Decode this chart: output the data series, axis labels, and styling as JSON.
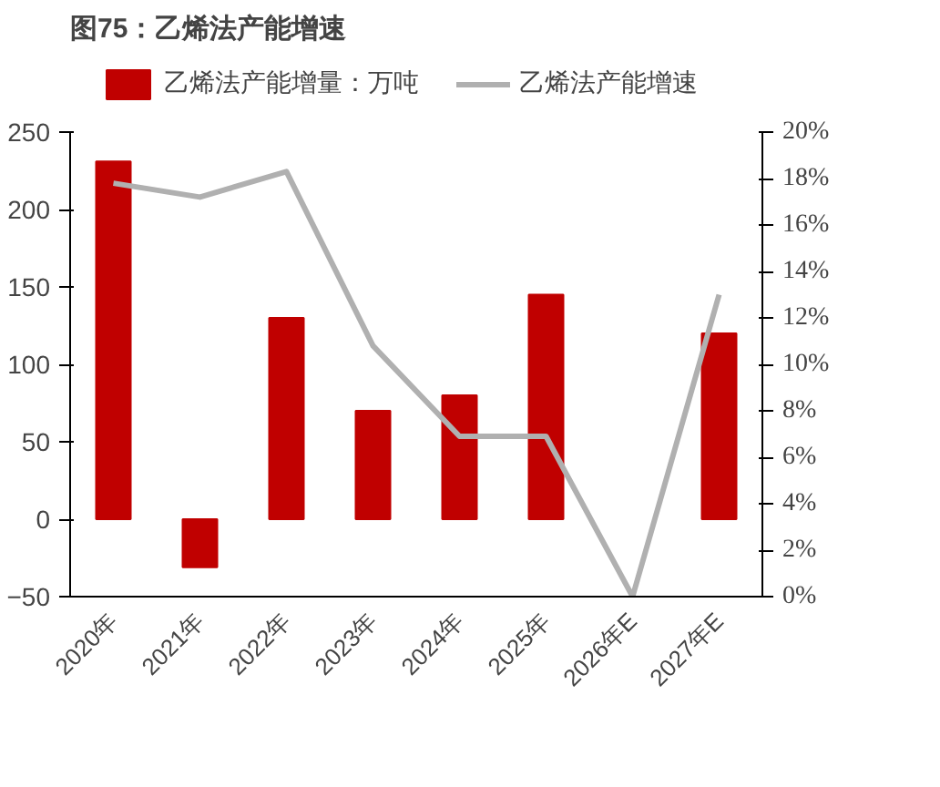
{
  "chart_data": {
    "type": "bar",
    "title": "图75：乙烯法产能增速",
    "categories": [
      "2020年",
      "2021年",
      "2022年",
      "2023年",
      "2024年",
      "2025年",
      "2026年E",
      "2027年E"
    ],
    "series": [
      {
        "name": "乙烯法产能增量：万吨",
        "color": "#c00000",
        "values": [
          231,
          -31,
          130,
          70,
          80,
          145,
          null,
          120
        ]
      },
      {
        "name": "乙烯法产能增速",
        "type": "line",
        "axis": "y2",
        "color": "#b0b0b0",
        "values": [
          17.8,
          17.2,
          18.3,
          10.8,
          6.9,
          6.9,
          0,
          13.0
        ]
      }
    ],
    "ylim": [
      -50,
      250
    ],
    "yticks": [
      -50,
      0,
      50,
      100,
      150,
      200,
      250
    ],
    "y2lim": [
      0,
      20
    ],
    "y2ticks": [
      {
        "value": 0,
        "label": "0%"
      },
      {
        "value": 2,
        "label": "2%"
      },
      {
        "value": 4,
        "label": "4%"
      },
      {
        "value": 6,
        "label": "6%"
      },
      {
        "value": 8,
        "label": "8%"
      },
      {
        "value": 10,
        "label": "10%"
      },
      {
        "value": 12,
        "label": "12%"
      },
      {
        "value": 14,
        "label": "14%"
      },
      {
        "value": 16,
        "label": "16%"
      },
      {
        "value": 18,
        "label": "18%"
      },
      {
        "value": 20,
        "label": "20%"
      }
    ],
    "legend": "top",
    "grid": false,
    "marker": "none",
    "line_style": "solid"
  }
}
